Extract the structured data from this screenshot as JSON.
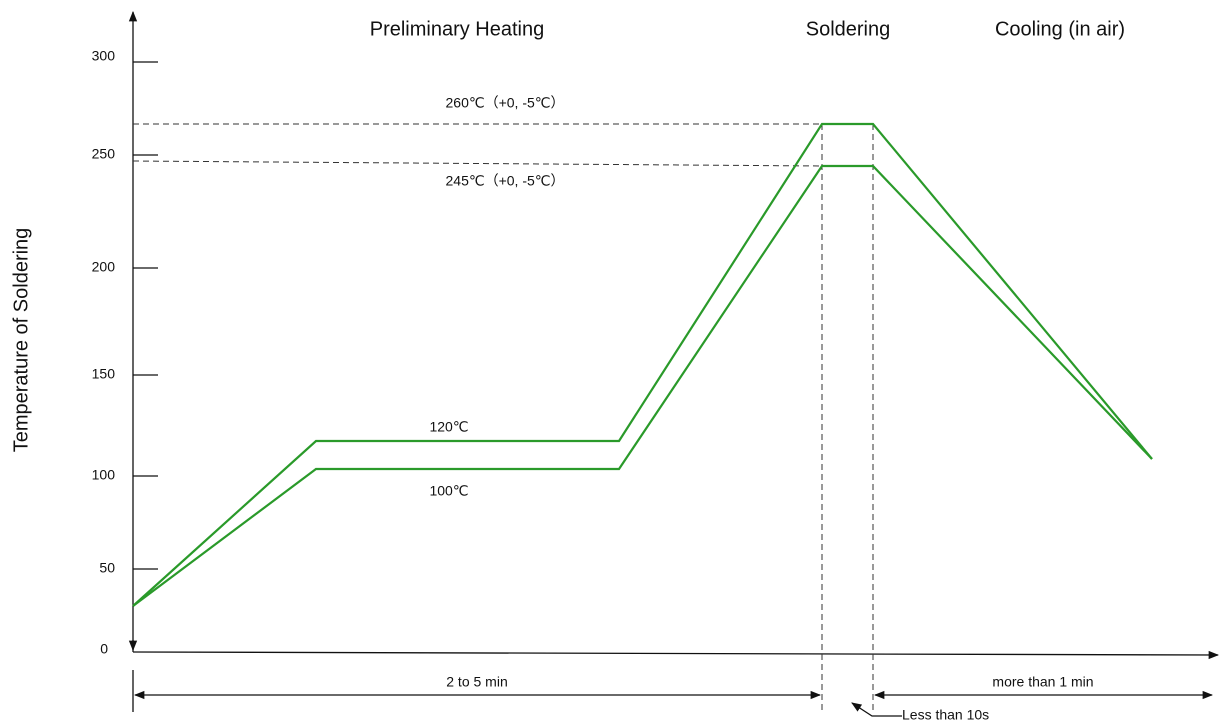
{
  "headers": [
    "Preliminary Heating",
    "Soldering",
    "Cooling (in air)"
  ],
  "y_axis": {
    "label": "Temperature of Soldering",
    "ticks": [
      "0",
      "50",
      "100",
      "150",
      "200",
      "250",
      "300"
    ]
  },
  "annotations": {
    "upper_peak": "260℃（+0, -5℃）",
    "lower_peak": "245℃（+0, -5℃）",
    "upper_plateau": "120℃",
    "lower_plateau": "100℃"
  },
  "durations": {
    "preheat": "2 to 5 min",
    "soldering": "Less than 10s",
    "cooling": "more than 1 min"
  }
}
